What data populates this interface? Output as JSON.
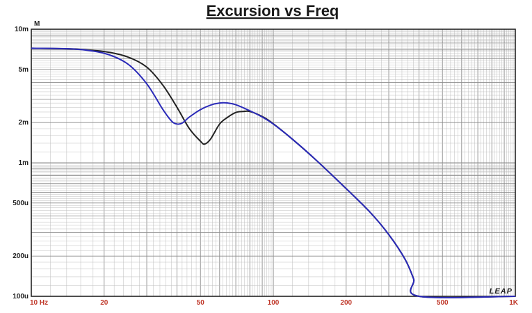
{
  "chart_data": {
    "type": "line",
    "title": "Excursion vs Freq",
    "y_unit_label": "M",
    "x_scale": "log",
    "y_scale": "log",
    "xlim": [
      10,
      1000
    ],
    "ylim": [
      0.0001,
      0.01
    ],
    "grid": true,
    "x_ticks": [
      {
        "value": 10,
        "label": "10  Hz"
      },
      {
        "value": 20,
        "label": "20"
      },
      {
        "value": 50,
        "label": "50"
      },
      {
        "value": 100,
        "label": "100"
      },
      {
        "value": 200,
        "label": "200"
      },
      {
        "value": 500,
        "label": "500"
      },
      {
        "value": 1000,
        "label": "1K"
      }
    ],
    "y_ticks": [
      {
        "value": 0.01,
        "label": "10m"
      },
      {
        "value": 0.005,
        "label": "5m"
      },
      {
        "value": 0.002,
        "label": "2m"
      },
      {
        "value": 0.001,
        "label": "1m"
      },
      {
        "value": 0.0005,
        "label": "500u"
      },
      {
        "value": 0.0002,
        "label": "200u"
      },
      {
        "value": 0.0001,
        "label": "100u"
      }
    ],
    "series": [
      {
        "color": "#222222",
        "points": [
          [
            10,
            0.0072
          ],
          [
            15,
            0.0071
          ],
          [
            20,
            0.0068
          ],
          [
            25,
            0.0062
          ],
          [
            30,
            0.0052
          ],
          [
            35,
            0.0038
          ],
          [
            40,
            0.0026
          ],
          [
            45,
            0.0018
          ],
          [
            50,
            0.00145
          ],
          [
            52,
            0.00138
          ],
          [
            55,
            0.0015
          ],
          [
            60,
            0.00195
          ],
          [
            65,
            0.0022
          ],
          [
            70,
            0.00238
          ],
          [
            75,
            0.00242
          ],
          [
            80,
            0.00242
          ],
          [
            90,
            0.00222
          ],
          [
            100,
            0.00196
          ],
          [
            120,
            0.0015
          ],
          [
            150,
            0.00105
          ],
          [
            200,
            0.00064
          ],
          [
            250,
            0.00043
          ],
          [
            300,
            0.00029
          ],
          [
            350,
            0.00019
          ],
          [
            380,
            0.000135
          ],
          [
            400,
            0.0001
          ],
          [
            1000,
            0.0001
          ]
        ]
      },
      {
        "color": "#2a2ab8",
        "points": [
          [
            10,
            0.0072
          ],
          [
            15,
            0.0071
          ],
          [
            20,
            0.0066
          ],
          [
            25,
            0.0055
          ],
          [
            30,
            0.0039
          ],
          [
            35,
            0.0025
          ],
          [
            38,
            0.00205
          ],
          [
            40,
            0.00195
          ],
          [
            42,
            0.00198
          ],
          [
            45,
            0.0022
          ],
          [
            50,
            0.0025
          ],
          [
            55,
            0.0027
          ],
          [
            60,
            0.0028
          ],
          [
            65,
            0.0028
          ],
          [
            70,
            0.00272
          ],
          [
            80,
            0.00245
          ],
          [
            90,
            0.0022
          ],
          [
            100,
            0.00195
          ],
          [
            120,
            0.0015
          ],
          [
            150,
            0.00105
          ],
          [
            200,
            0.00064
          ],
          [
            250,
            0.00043
          ],
          [
            300,
            0.00029
          ],
          [
            350,
            0.00019
          ],
          [
            380,
            0.000135
          ],
          [
            400,
            0.0001
          ],
          [
            1000,
            0.0001
          ]
        ]
      }
    ]
  },
  "logo_text": "LEAP",
  "colors": {
    "grid_minor": "#bdbdbd",
    "grid_major": "#8c8c8c",
    "frame": "#222222"
  }
}
